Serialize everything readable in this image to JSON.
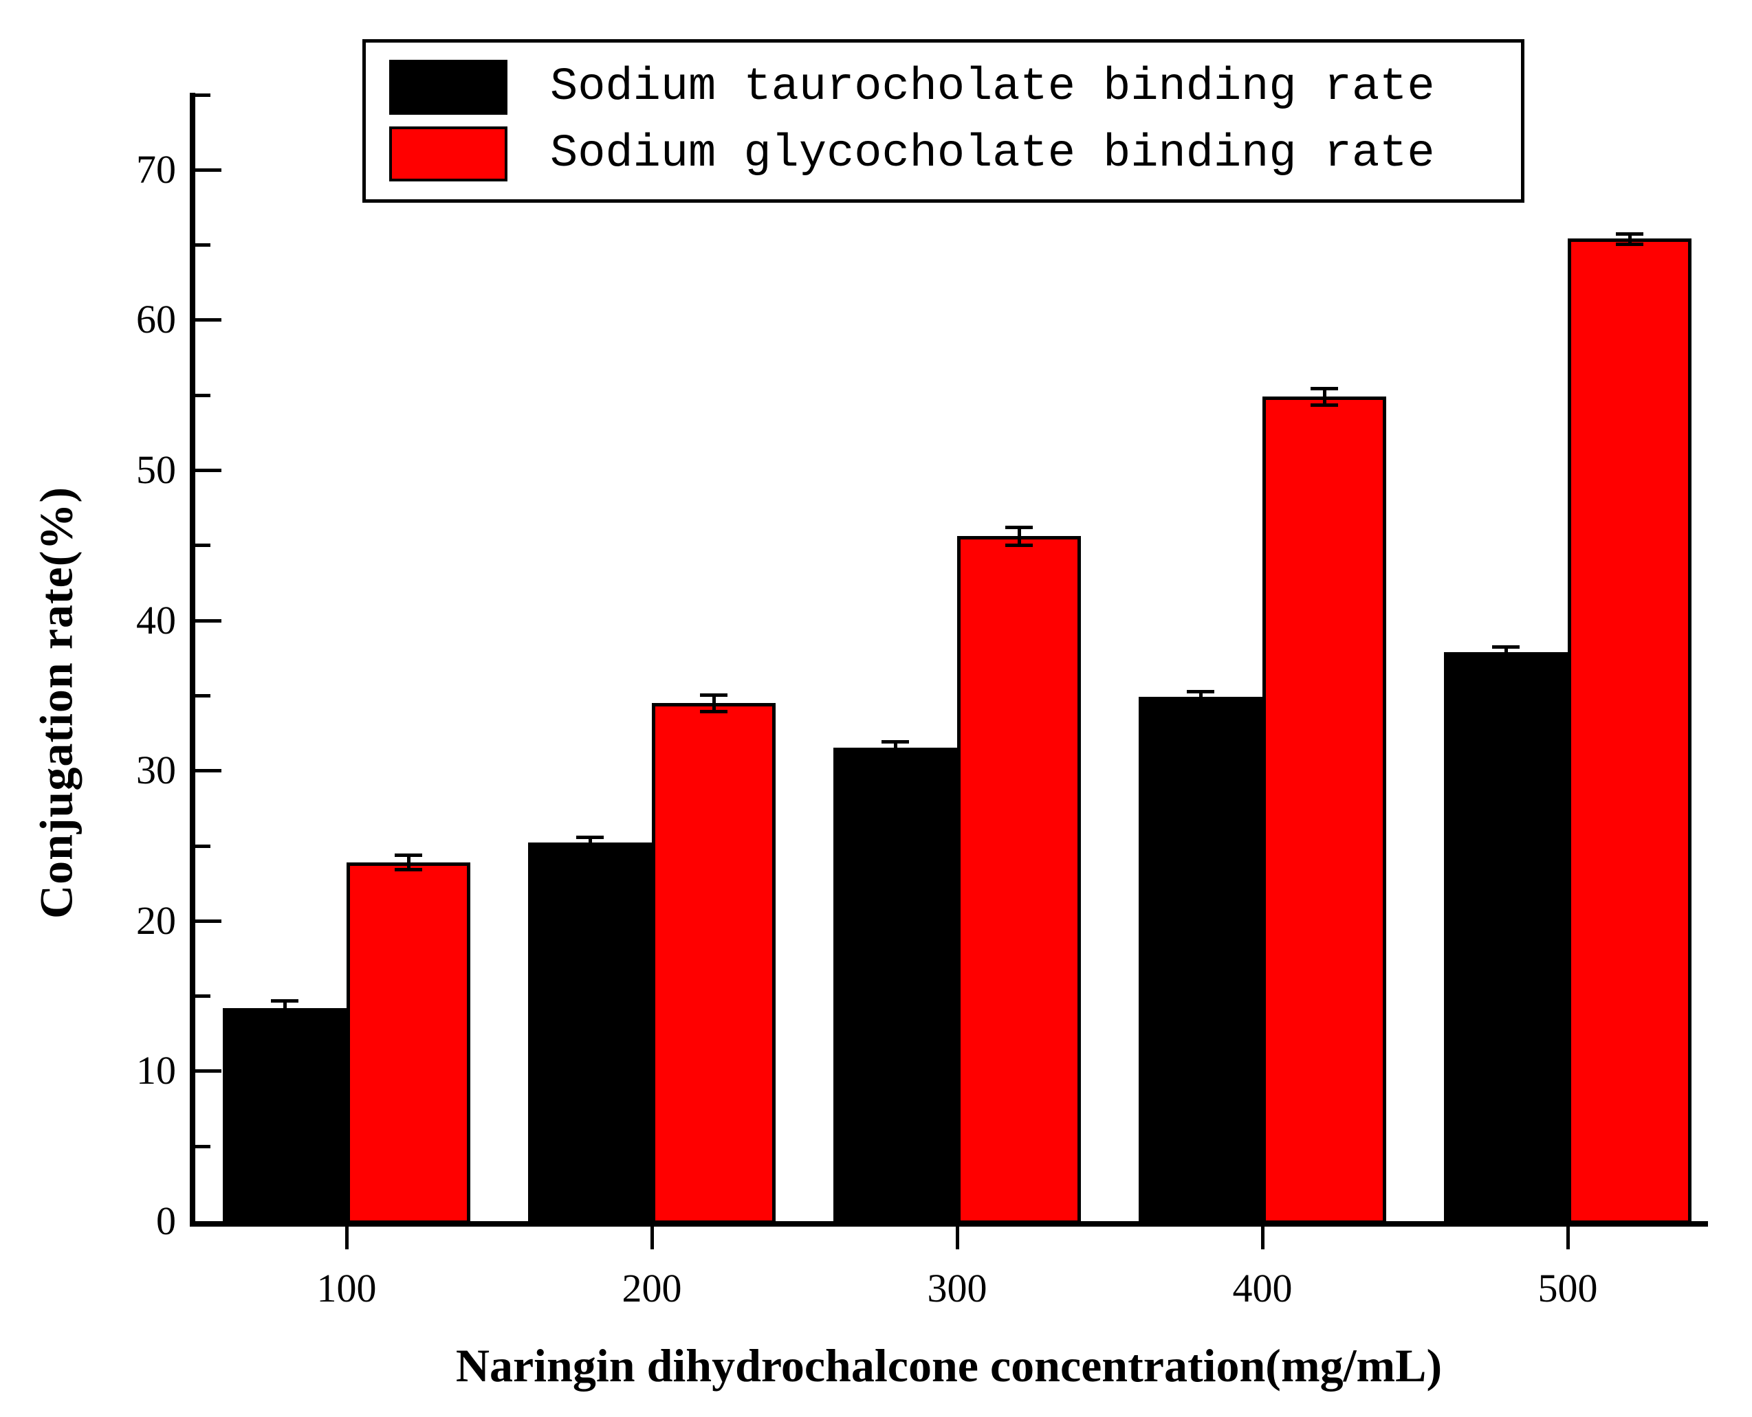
{
  "chart_data": {
    "type": "bar",
    "title": "",
    "categories": [
      "100",
      "200",
      "300",
      "400",
      "500"
    ],
    "xlabel": "Naringin dihydrochalcone concentration(mg/mL)",
    "ylabel": "Conjugation rate(%)",
    "ylim": [
      0,
      75
    ],
    "y_major_ticks": [
      0,
      10,
      20,
      30,
      40,
      50,
      60,
      70
    ],
    "y_minor_ticks": [
      5,
      15,
      25,
      35,
      45,
      55,
      65,
      75
    ],
    "grid": false,
    "legend_position": "top-left-inside",
    "series": [
      {
        "name": "Sodium taurocholate binding rate",
        "color": "#000000",
        "values": [
          14.2,
          25.2,
          31.5,
          34.9,
          37.9
        ],
        "errors": [
          0.5,
          0.35,
          0.45,
          0.35,
          0.35
        ]
      },
      {
        "name": "Sodium glycocholate binding rate",
        "color": "#ff0000",
        "values": [
          23.9,
          34.5,
          45.6,
          54.9,
          65.4
        ],
        "errors": [
          0.5,
          0.55,
          0.6,
          0.55,
          0.35
        ]
      }
    ]
  },
  "colors": {
    "axis": "#000000",
    "background": "#ffffff",
    "bar_border": "#000000",
    "series1": "#000000",
    "series2": "#ff0000"
  }
}
